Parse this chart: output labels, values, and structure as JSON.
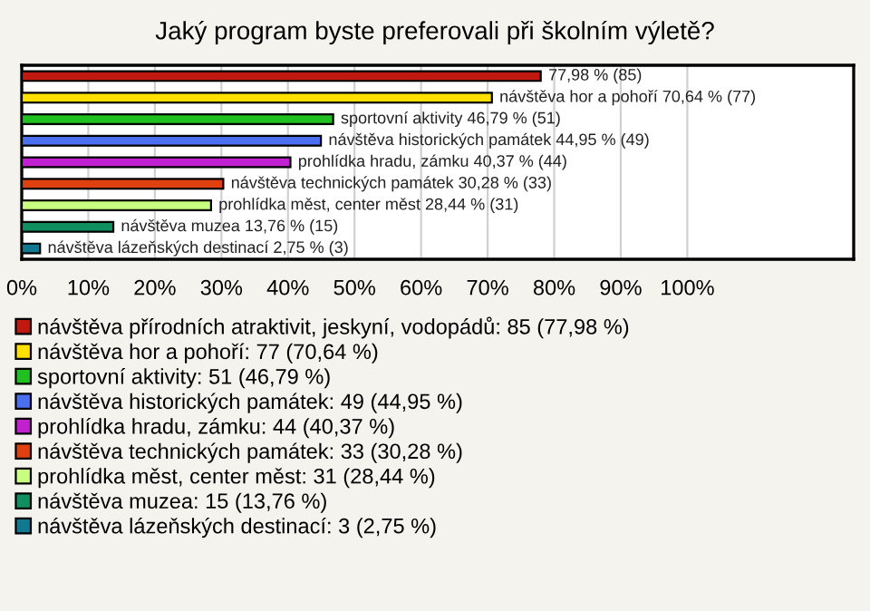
{
  "chart_data": {
    "type": "bar",
    "orientation": "horizontal",
    "stacked": true,
    "title": "Jaký program byste preferovali při školním výletě?",
    "categories": [
      null,
      null,
      null,
      null,
      null,
      null,
      null,
      null,
      null
    ],
    "series": [
      {
        "name": "návštěva přírodních atraktivit, jeskyní, vodopádů: 85 (77,98 %)",
        "color": "#c01a10",
        "values": [
          77.98,
          null,
          null,
          null,
          null,
          null,
          null,
          null,
          null
        ],
        "value_labels": [
          "77,98 % (85)",
          null,
          null,
          null,
          null,
          null,
          null,
          null,
          null
        ]
      },
      {
        "name": "návštěva hor a pohoří: 77 (70,64 %)",
        "color": "#ffe000",
        "values": [
          null,
          70.64,
          null,
          null,
          null,
          null,
          null,
          null,
          null
        ],
        "value_labels": [
          null,
          "návštěva hor a pohoří 70,64 % (77)",
          null,
          null,
          null,
          null,
          null,
          null,
          null
        ]
      },
      {
        "name": "sportovní aktivity: 51 (46,79 %)",
        "color": "#20c020",
        "values": [
          null,
          null,
          46.79,
          null,
          null,
          null,
          null,
          null,
          null
        ],
        "value_labels": [
          null,
          null,
          "sportovní aktivity 46,79 % (51)",
          null,
          null,
          null,
          null,
          null,
          null
        ]
      },
      {
        "name": "návštěva historických památek: 49 (44,95 %)",
        "color": "#4a70f0",
        "values": [
          null,
          null,
          null,
          44.95,
          null,
          null,
          null,
          null,
          null
        ],
        "value_labels": [
          null,
          null,
          null,
          "návštěva historických památek 44,95 % (49)",
          null,
          null,
          null,
          null,
          null
        ]
      },
      {
        "name": "prohlídka hradu, zámku: 44 (40,37 %)",
        "color": "#c020d0",
        "values": [
          null,
          null,
          null,
          null,
          40.37,
          null,
          null,
          null,
          null
        ],
        "value_labels": [
          null,
          null,
          null,
          null,
          "prohlídka hradu, zámku 40,37 % (44)",
          null,
          null,
          null,
          null
        ]
      },
      {
        "name": "návštěva technických památek: 33 (30,28 %)",
        "color": "#e04010",
        "values": [
          null,
          null,
          null,
          null,
          null,
          30.28,
          null,
          null,
          null
        ],
        "value_labels": [
          null,
          null,
          null,
          null,
          null,
          "návštěva technických památek 30,28 % (33)",
          null,
          null,
          null
        ]
      },
      {
        "name": "prohlídka měst, center měst: 31 (28,44 %)",
        "color": "#c8ff80",
        "values": [
          null,
          null,
          null,
          null,
          null,
          null,
          28.44,
          null,
          null
        ],
        "value_labels": [
          null,
          null,
          null,
          null,
          null,
          null,
          "prohlídka měst, center měst 28,44 % (31)",
          null,
          null
        ]
      },
      {
        "name": "návštěva muzea: 15 (13,76 %)",
        "color": "#109060",
        "values": [
          null,
          null,
          null,
          null,
          null,
          null,
          null,
          13.76,
          null
        ],
        "value_labels": [
          null,
          null,
          null,
          null,
          null,
          null,
          null,
          "návštěva muzea 13,76 % (15)",
          null
        ]
      },
      {
        "name": "návštěva lázeňských destinací: 3 (2,75 %)",
        "color": "#107890",
        "values": [
          null,
          null,
          null,
          null,
          null,
          null,
          null,
          null,
          2.75
        ],
        "value_labels": [
          null,
          null,
          null,
          null,
          null,
          null,
          null,
          null,
          "návštěva lázeňských destinací 2,75 % (3)"
        ]
      }
    ],
    "xlim": [
      0,
      125
    ],
    "xticks": [
      {
        "value": 0,
        "label": "0%"
      },
      {
        "value": 10,
        "label": "10%"
      },
      {
        "value": 20,
        "label": "20%"
      },
      {
        "value": 30,
        "label": "30%"
      },
      {
        "value": 40,
        "label": "40%"
      },
      {
        "value": 50,
        "label": "50%"
      },
      {
        "value": 60,
        "label": "60%"
      },
      {
        "value": 70,
        "label": "70%"
      },
      {
        "value": 80,
        "label": "80%"
      },
      {
        "value": 90,
        "label": "90%"
      },
      {
        "value": 100,
        "label": "100%"
      }
    ],
    "grid": "x",
    "legend": "bottom",
    "tick_labels": "x"
  }
}
